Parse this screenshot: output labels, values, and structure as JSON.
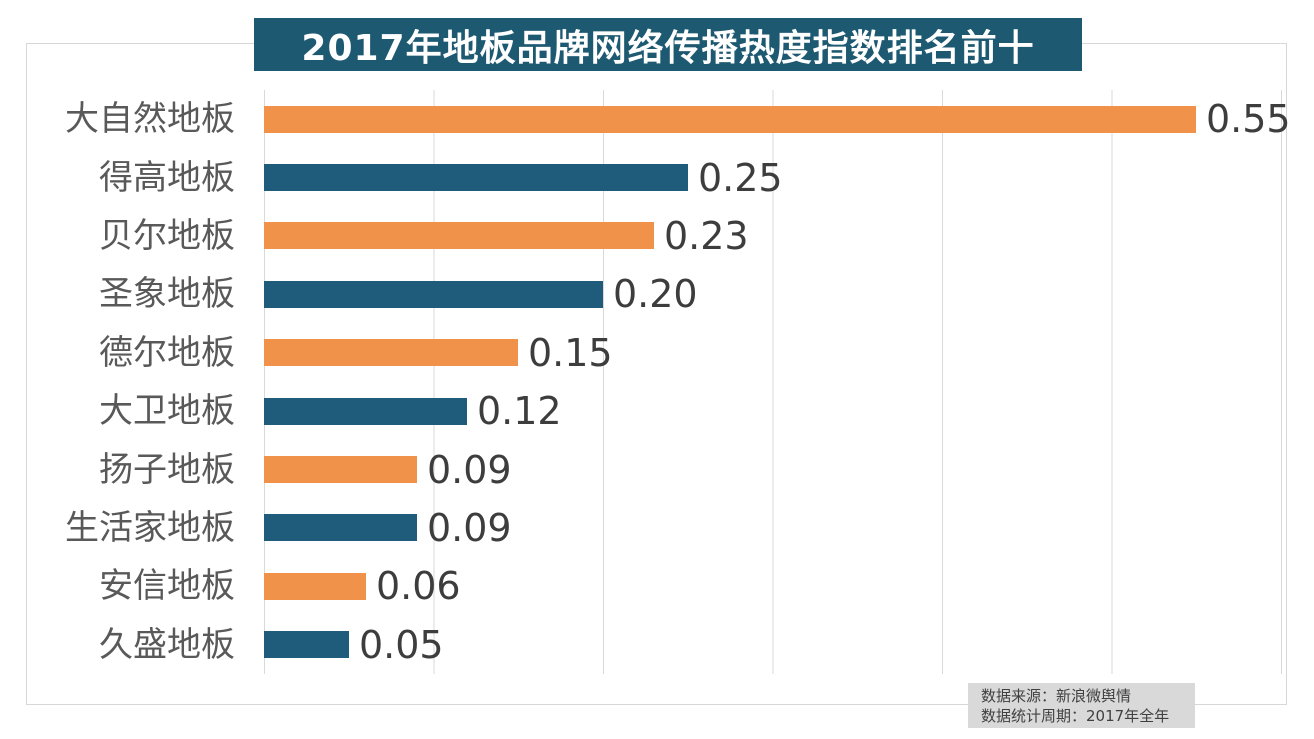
{
  "chart_data": {
    "type": "bar",
    "orientation": "horizontal",
    "title": "2017年地板品牌网络传播热度指数排名前十",
    "categories": [
      "大自然地板",
      "得高地板",
      "贝尔地板",
      "圣象地板",
      "德尔地板",
      "大卫地板",
      "扬子地板",
      "生活家地板",
      "安信地板",
      "久盛地板"
    ],
    "values": [
      0.55,
      0.25,
      0.23,
      0.2,
      0.15,
      0.12,
      0.09,
      0.09,
      0.06,
      0.05
    ],
    "value_labels": [
      "0.55",
      "0.25",
      "0.23",
      "0.20",
      "0.15",
      "0.12",
      "0.09",
      "0.09",
      "0.06",
      "0.05"
    ],
    "xlabel": "",
    "ylabel": "",
    "xlim": [
      0,
      0.6
    ],
    "gridline_interval": 0.1,
    "grid": "vertical-gridlines-on",
    "legend": "none",
    "colors": {
      "bar_alternating": [
        "#F0924A",
        "#1F5C7C"
      ],
      "title_background": "#1E5972",
      "title_text": "#FFFFFF",
      "category_label": "#595959",
      "value_label": "#3D3D3D",
      "gridline": "#D9D9D9",
      "source_box_background": "#D9D9D9"
    }
  },
  "source": {
    "line1": "数据来源：新浪微舆情",
    "line2": "数据统计周期：2017年全年"
  }
}
